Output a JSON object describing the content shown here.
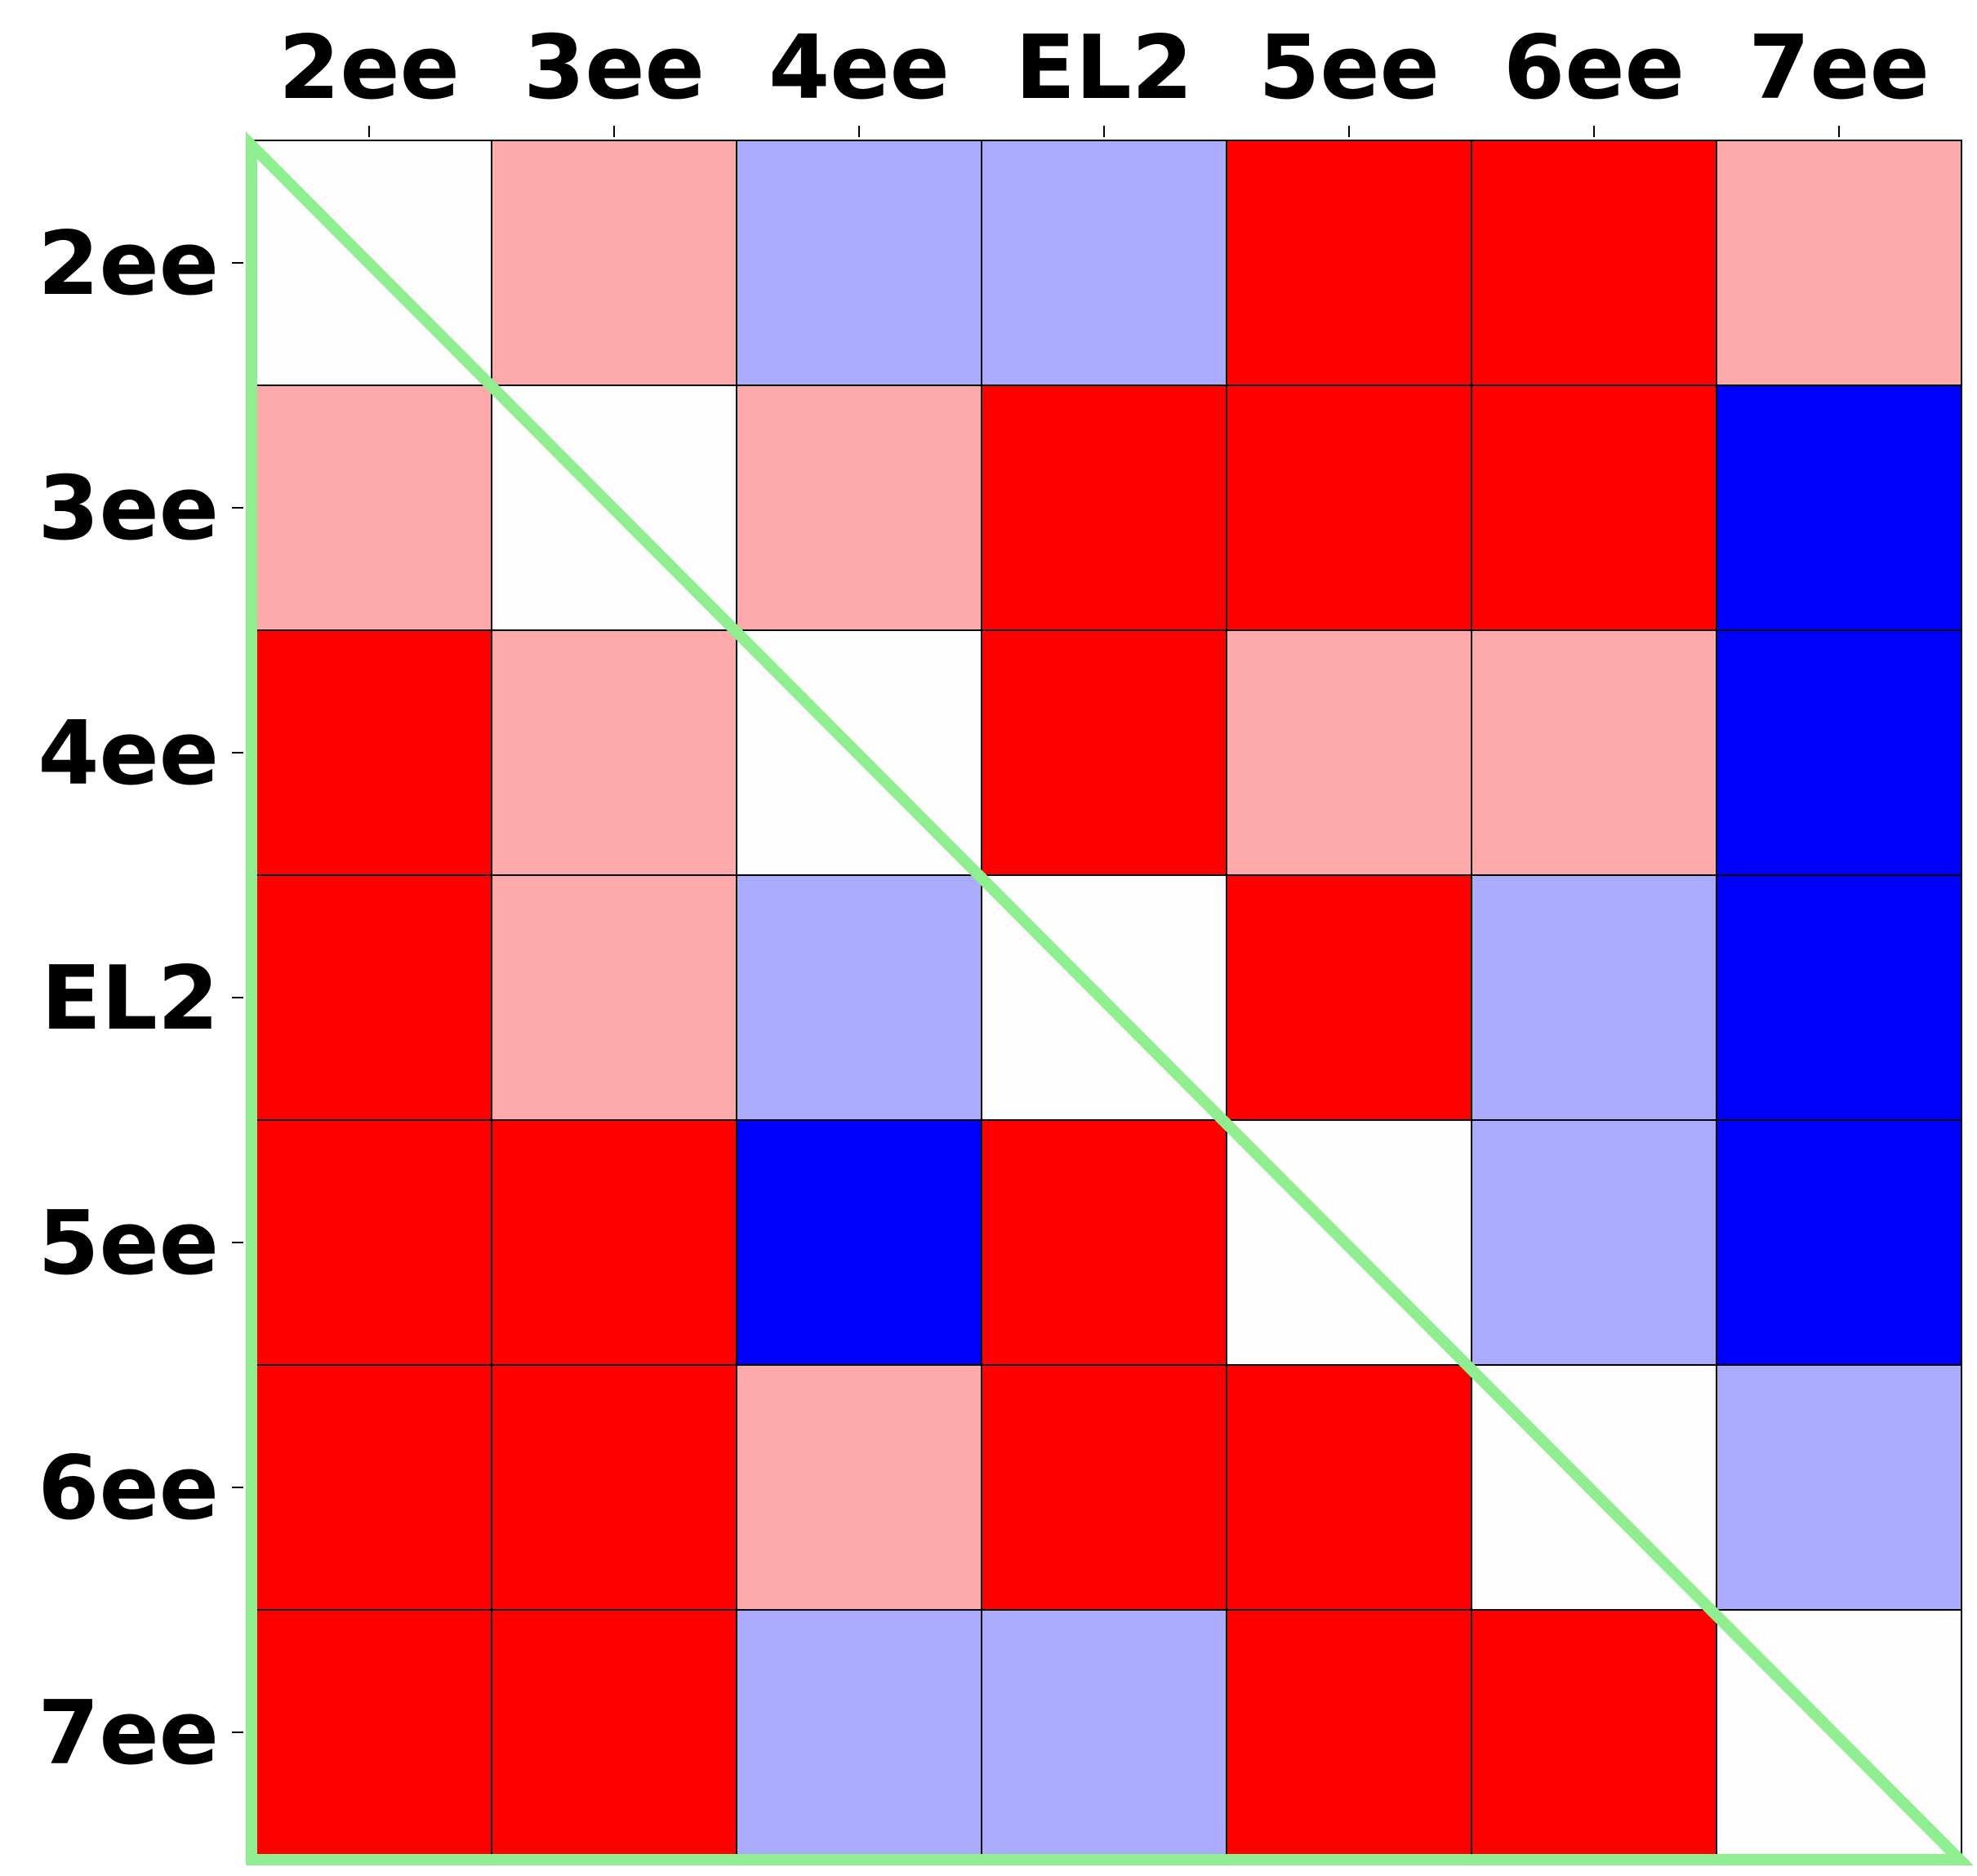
{
  "chart_data": {
    "type": "heatmap",
    "title": "",
    "xlabel": "",
    "ylabel": "",
    "x_categories": [
      "2ee",
      "3ee",
      "4ee",
      "EL2",
      "5ee",
      "6ee",
      "7ee"
    ],
    "y_categories": [
      "2ee",
      "3ee",
      "4ee",
      "EL2",
      "5ee",
      "6ee",
      "7ee"
    ],
    "x_axis_position": "top",
    "level_colors": {
      "-2": "#0000ff",
      "-1": "#aaaaff",
      "0": "#fdfdfd",
      "1": "#ffaaaa",
      "2": "#ff0000"
    },
    "values": [
      [
        0,
        1,
        -1,
        -1,
        2,
        2,
        1
      ],
      [
        1,
        0,
        1,
        2,
        2,
        2,
        -2
      ],
      [
        2,
        1,
        0,
        2,
        1,
        1,
        -2
      ],
      [
        2,
        1,
        -1,
        0,
        2,
        -1,
        -2
      ],
      [
        2,
        2,
        -2,
        2,
        0,
        -1,
        -2
      ],
      [
        2,
        2,
        1,
        2,
        2,
        0,
        -1
      ],
      [
        2,
        2,
        -1,
        -1,
        2,
        2,
        0
      ]
    ],
    "overlay": {
      "shape": "lower-left triangle outline",
      "color": "#90ee90"
    },
    "grid": false,
    "legend": "none"
  }
}
